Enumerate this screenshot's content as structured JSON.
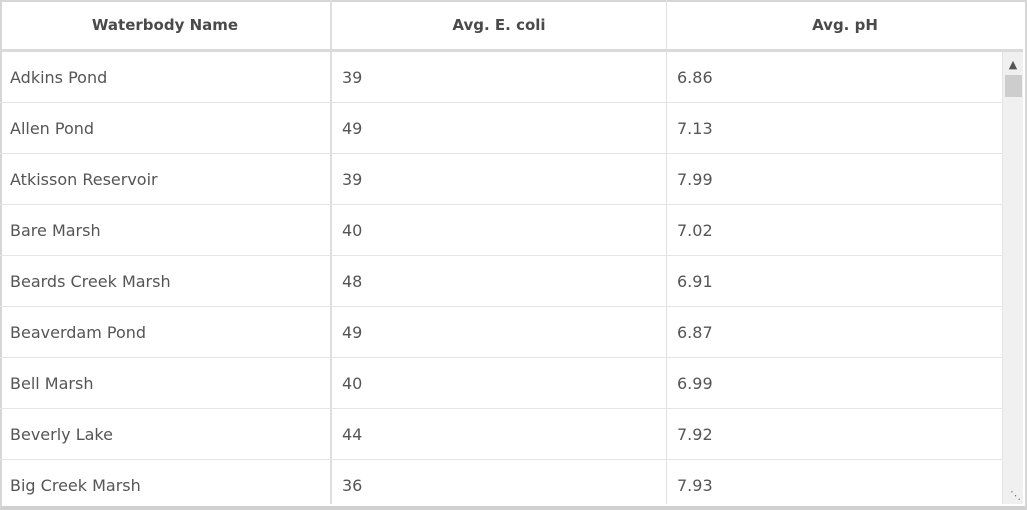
{
  "columns": [
    "Waterbody Name",
    "Avg. E. coli",
    "Avg. pH"
  ],
  "rows": [
    [
      "Adkins Pond",
      "39",
      "6.86"
    ],
    [
      "Allen Pond",
      "49",
      "7.13"
    ],
    [
      "Atkisson Reservoir",
      "39",
      "7.99"
    ],
    [
      "Bare Marsh",
      "40",
      "7.02"
    ],
    [
      "Beards Creek Marsh",
      "48",
      "6.91"
    ],
    [
      "Beaverdam Pond",
      "49",
      "6.87"
    ],
    [
      "Bell Marsh",
      "40",
      "6.99"
    ],
    [
      "Beverly Lake",
      "44",
      "7.92"
    ],
    [
      "Big Creek Marsh",
      "36",
      "7.93"
    ]
  ],
  "scrollbar": {
    "up_icon": "chevron-up-icon",
    "resize_icon": "resize-grip-icon"
  }
}
